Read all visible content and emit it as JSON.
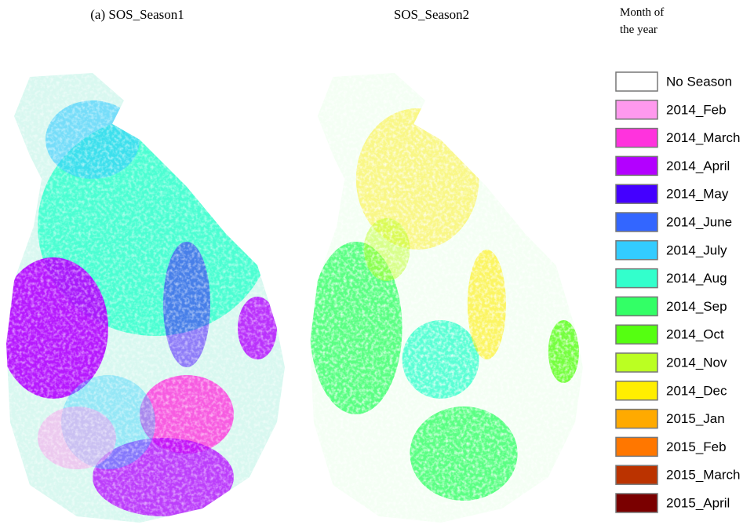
{
  "maps": [
    {
      "title": "(a) SOS_Season1"
    },
    {
      "title": "SOS_Season2"
    }
  ],
  "legend": {
    "title_lines": [
      "Month of",
      "the year"
    ],
    "items": [
      {
        "label": "No Season",
        "color": "#ffffff"
      },
      {
        "label": "2014_Feb",
        "color": "#ff99ee"
      },
      {
        "label": "2014_March",
        "color": "#ff33dd"
      },
      {
        "label": "2014_April",
        "color": "#b300ff"
      },
      {
        "label": "2014_May",
        "color": "#4400ff"
      },
      {
        "label": "2014_June",
        "color": "#3366ff"
      },
      {
        "label": "2014_July",
        "color": "#33ccff"
      },
      {
        "label": "2014_Aug",
        "color": "#33ffcc"
      },
      {
        "label": "2014_Sep",
        "color": "#33ff66"
      },
      {
        "label": "2014_Oct",
        "color": "#55ff11"
      },
      {
        "label": "2014_Nov",
        "color": "#bbff22"
      },
      {
        "label": "2014_Dec",
        "color": "#ffee00"
      },
      {
        "label": "2015_Jan",
        "color": "#ffaa00"
      },
      {
        "label": "2015_Feb",
        "color": "#ff7700"
      },
      {
        "label": "2015_March",
        "color": "#bb3300"
      },
      {
        "label": "2015_April",
        "color": "#7a0000"
      }
    ]
  }
}
